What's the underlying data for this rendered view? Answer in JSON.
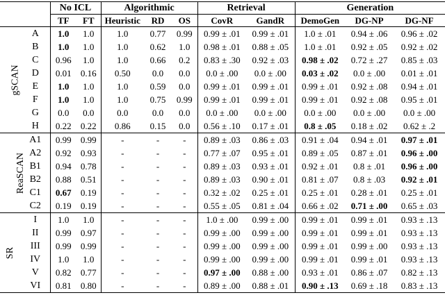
{
  "table": {
    "groups": [
      {
        "label": "No ICL",
        "columns": [
          "TF",
          "FT"
        ]
      },
      {
        "label": "Algorithmic",
        "columns": [
          "Heuristic",
          "RD",
          "OS"
        ]
      },
      {
        "label": "Retrieval",
        "columns": [
          "CovR",
          "GandR"
        ]
      },
      {
        "label": "Generation",
        "columns": [
          "DemoGen",
          "DG-NP",
          "DG-NF"
        ]
      }
    ],
    "sections": [
      {
        "name": "gSCAN",
        "rows": [
          {
            "label": "A",
            "cells": [
              "1.0",
              "1.0",
              "1.0",
              "0.77",
              "0.99",
              "0.99 ± .01",
              "0.99 ± .01",
              "1.0 ± .01",
              "0.94 ± .06",
              "0.96 ± .02"
            ],
            "bold": [
              0
            ]
          },
          {
            "label": "B",
            "cells": [
              "1.0",
              "1.0",
              "1.0",
              "0.62",
              "1.0",
              "0.98 ± .01",
              "0.88 ± .05",
              "1.0 ± .01",
              "0.92 ± .05",
              "0.92 ± .02"
            ],
            "bold": [
              0
            ]
          },
          {
            "label": "C",
            "cells": [
              "0.96",
              "1.0",
              "1.0",
              "0.66",
              "0.2",
              "0.83 ± .30",
              "0.92 ± .03",
              "0.98 ± .02",
              "0.72 ± .27",
              "0.85 ± .03"
            ],
            "bold": [
              7
            ]
          },
          {
            "label": "D",
            "cells": [
              "0.01",
              "0.16",
              "0.50",
              "0.0",
              "0.0",
              "0.0 ± .00",
              "0.0 ± .00",
              "0.03 ± .02",
              "0.0 ± .00",
              "0.01 ± .01"
            ],
            "bold": [
              7
            ]
          },
          {
            "label": "E",
            "cells": [
              "1.0",
              "1.0",
              "1.0",
              "0.59",
              "0.0",
              "0.99 ± .01",
              "0.99 ± .01",
              "0.99 ± .01",
              "0.92 ± .08",
              "0.94 ± .01"
            ],
            "bold": [
              0
            ]
          },
          {
            "label": "F",
            "cells": [
              "1.0",
              "1.0",
              "1.0",
              "0.75",
              "0.99",
              "0.99 ± .01",
              "0.99 ± .01",
              "0.99 ± .01",
              "0.92 ± .08",
              "0.95 ± .01"
            ],
            "bold": [
              0
            ]
          },
          {
            "label": "G",
            "cells": [
              "0.0",
              "0.0",
              "0.0",
              "0.0",
              "0.0",
              "0.0 ± .00",
              "0.0 ± .00",
              "0.0 ± .00",
              "0.0 ± .00",
              "0.0 ± .00"
            ]
          },
          {
            "label": "H",
            "cells": [
              "0.22",
              "0.22",
              "0.86",
              "0.15",
              "0.0",
              "0.56 ± .10",
              "0.17 ± .01",
              "0.8 ± .05",
              "0.18 ± .02",
              "0.62 ± .2"
            ],
            "bold": [
              7
            ]
          }
        ]
      },
      {
        "name": "ReaSCAN",
        "rows": [
          {
            "label": "A1",
            "cells": [
              "0.99",
              "0.99",
              "-",
              "-",
              "-",
              "0.89 ± .03",
              "0.86 ± .03",
              "0.91 ± .04",
              "0.94 ± .01",
              "0.97 ± .01"
            ],
            "bold": [
              9
            ]
          },
          {
            "label": "A2",
            "cells": [
              "0.92",
              "0.93",
              "-",
              "-",
              "-",
              "0.77 ± .07",
              "0.95 ± .01",
              "0.89 ± .05",
              "0.87 ± .01",
              "0.96 ± .00"
            ],
            "bold": [
              9
            ]
          },
          {
            "label": "B1",
            "cells": [
              "0.94",
              "0.78",
              "-",
              "-",
              "-",
              "0.89 ± .03",
              "0.93 ± .01",
              "0.92 ± .01",
              "0.8 ± .01",
              "0.96 ± .00"
            ],
            "bold": [
              9
            ]
          },
          {
            "label": "B2",
            "cells": [
              "0.88",
              "0.51",
              "-",
              "-",
              "-",
              "0.89 ± .03",
              "0.90 ± .01",
              "0.81 ± .07",
              "0.8 ± .03",
              "0.92 ± .01"
            ],
            "bold": [
              9
            ]
          },
          {
            "label": "C1",
            "cells": [
              "0.67",
              "0.19",
              "-",
              "-",
              "-",
              "0.32 ± .02",
              "0.25 ± .01",
              "0.25 ± .01",
              "0.28 ± .01",
              "0.25 ± .01"
            ],
            "bold": [
              0
            ]
          },
          {
            "label": "C2",
            "cells": [
              "0.19",
              "0.19",
              "-",
              "-",
              "-",
              "0.55 ± .05",
              "0.81 ± .04",
              "0.66 ± .02",
              "0.71 ± .00",
              "0.65 ± .03"
            ],
            "bold": [
              8
            ]
          }
        ]
      },
      {
        "name": "SR",
        "rows": [
          {
            "label": "I",
            "cells": [
              "1.0",
              "1.0",
              "-",
              "-",
              "-",
              "1.0 ± .00",
              "0.99 ± .00",
              "0.99 ± .01",
              "0.99 ± .01",
              "0.93 ± .13"
            ]
          },
          {
            "label": "II",
            "cells": [
              "0.99",
              "0.97",
              "-",
              "-",
              "-",
              "0.99 ± .00",
              "0.99 ± .00",
              "0.99 ± .01",
              "0.99 ± .01",
              "0.93 ± .13"
            ]
          },
          {
            "label": "III",
            "cells": [
              "0.99",
              "0.99",
              "-",
              "-",
              "-",
              "0.99 ± .00",
              "0.99 ± .00",
              "0.99 ± .01",
              "0.99 ± .00",
              "0.93 ± .13"
            ]
          },
          {
            "label": "IV",
            "cells": [
              "1.0",
              "1.0",
              "-",
              "-",
              "-",
              "0.99 ± .00",
              "0.99 ± .00",
              "0.99 ± .01",
              "0.99 ± .01",
              "0.93 ± .13"
            ]
          },
          {
            "label": "V",
            "cells": [
              "0.82",
              "0.77",
              "-",
              "-",
              "-",
              "0.97 ± .00",
              "0.88 ± .00",
              "0.93 ± .01",
              "0.86 ± .07",
              "0.82 ± .13"
            ],
            "bold": [
              5
            ]
          },
          {
            "label": "VI",
            "cells": [
              "0.81",
              "0.80",
              "-",
              "-",
              "-",
              "0.89 ± .00",
              "0.88 ± .01",
              "0.90 ± .13",
              "0.69 ± .18",
              "0.83 ± .13"
            ],
            "bold": [
              7
            ]
          }
        ]
      }
    ]
  }
}
